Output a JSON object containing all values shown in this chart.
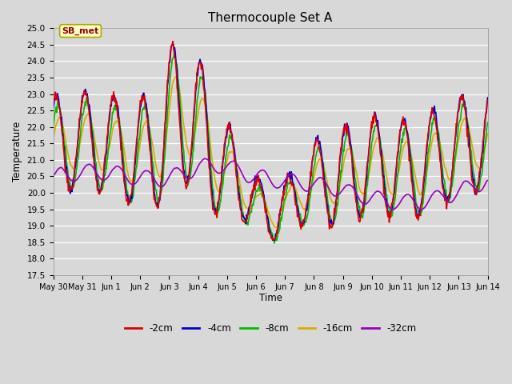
{
  "title": "Thermocouple Set A",
  "xlabel": "Time",
  "ylabel": "Temperature",
  "ylim": [
    17.5,
    25.0
  ],
  "yticks": [
    17.5,
    18.0,
    18.5,
    19.0,
    19.5,
    20.0,
    20.5,
    21.0,
    21.5,
    22.0,
    22.5,
    23.0,
    23.5,
    24.0,
    24.5,
    25.0
  ],
  "line_colors": {
    "-2cm": "#dd0000",
    "-4cm": "#0000cc",
    "-8cm": "#00bb00",
    "-16cm": "#ddaa00",
    "-32cm": "#9900bb"
  },
  "line_width": 1.2,
  "legend_labels": [
    "-2cm",
    "-4cm",
    "-8cm",
    "-16cm",
    "-32cm"
  ],
  "annotation_text": "SB_met",
  "bg_color": "#d8d8d8",
  "plot_bg_color": "#d8d8d8",
  "x_tick_labels": [
    "May 30",
    "May 31",
    "Jun 1",
    "Jun 2",
    "Jun 3",
    "Jun 4",
    "Jun 5",
    "Jun 6",
    "Jun 7",
    "Jun 8",
    "Jun 9",
    "Jun 10",
    "Jun 11",
    "Jun 12",
    "Jun 13",
    "Jun 14"
  ],
  "x_tick_positions": [
    0,
    1,
    2,
    3,
    4,
    5,
    6,
    7,
    8,
    9,
    10,
    11,
    12,
    13,
    14,
    15
  ],
  "duration_days": 15,
  "samples_per_day": 48
}
